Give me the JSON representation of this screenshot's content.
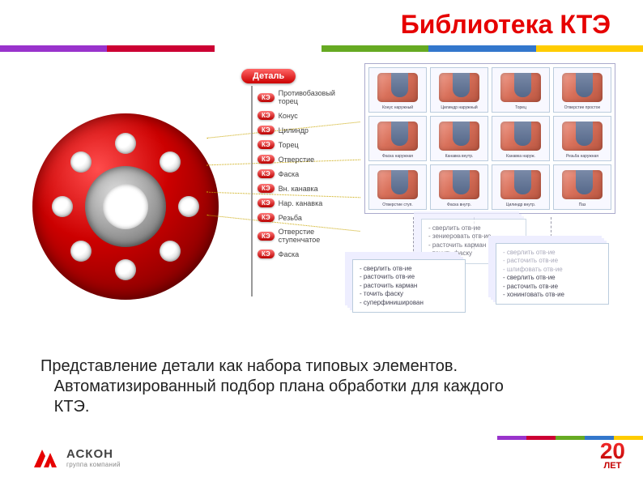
{
  "title": "Библиотека КТЭ",
  "stripe_colors": [
    "#9933cc",
    "#cc0033",
    "#ffffff",
    "#66aa22",
    "#3377cc",
    "#ffcc00"
  ],
  "title_color": "#e60000",
  "flange": {
    "outer_color": "#cc0000",
    "inner_color": "#888888",
    "bolt_count": 8,
    "bolt_ring_radius": 78,
    "bolt_diameter": 26
  },
  "tree": {
    "root": "Деталь",
    "badge": "КЭ",
    "items": [
      "Противобазовый торец",
      "Конус",
      "Цилиндр",
      "Торец",
      "Отверстие",
      "Фаска",
      "Вн. канавка",
      "Нар. канавка",
      "Резьба",
      "Отверстие ступенчатое",
      "Фаска"
    ]
  },
  "thumbs": {
    "rows": 3,
    "cols": 4,
    "captions": [
      "Конус наружный",
      "Цилиндр наружный",
      "Торец",
      "Отверстие простое",
      "Фаска наружная",
      "Канавка внутр.",
      "Канавка наруж.",
      "Резьба наружная",
      "Отверстие ступ.",
      "Фаска внутр.",
      "Цилиндр внутр.",
      "Паз"
    ],
    "fill": "#d8705a",
    "cut": "#55688a",
    "border": "#bcd"
  },
  "proc_cards": {
    "card1": [
      "- сверлить отв-ие",
      "- расточить отв-ие",
      "- расточить карман",
      "- точить фаску",
      "- суперфиниширован"
    ],
    "card2": [
      "- сверлить отв-ие",
      "- расточить отв-ие",
      "- шлифовать отв-ие",
      "- сверлить отв-ие",
      "- расточить отв-ие",
      "- хонинговать отв-ие"
    ],
    "card3": [
      "- сверлить отв-ие",
      "- зениеровать отв-ие",
      "- расточить карман",
      "- точить фаску"
    ]
  },
  "description": {
    "line1": "Представление детали как набора типовых элементов.",
    "line2": "Автоматизированный подбор плана обработки для каждого",
    "line3": "КТЭ."
  },
  "logo": {
    "name": "АСКОН",
    "sub": "группа компаний",
    "mark_color": "#e60000"
  },
  "anniversary": {
    "number": "20",
    "label": "ЛЕТ",
    "colors": [
      "#9933cc",
      "#cc0033",
      "#66aa22",
      "#3377cc",
      "#ffcc00"
    ]
  }
}
